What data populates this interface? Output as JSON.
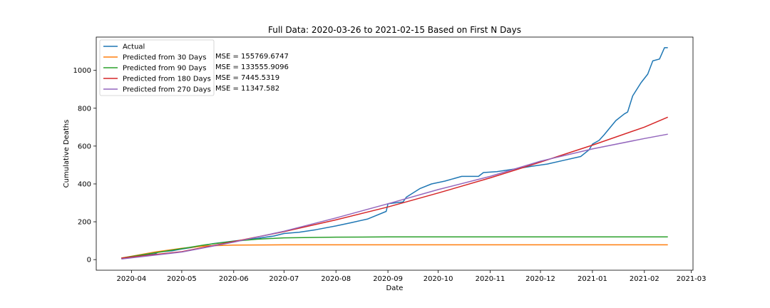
{
  "chart_data": {
    "type": "line",
    "title": "Full Data: 2020-03-26 to 2021-02-15 Based on First N Days",
    "xlabel": "Date",
    "ylabel": "Cumulative Deaths",
    "x_start": "2020-03-26",
    "x_end": "2021-02-15",
    "xlim": [
      "2020-03-11",
      "2021-03-02"
    ],
    "ylim": [
      -56,
      1176
    ],
    "x_ticks": [
      {
        "date": "2020-04-01",
        "label": "2020-04"
      },
      {
        "date": "2020-05-01",
        "label": "2020-05"
      },
      {
        "date": "2020-06-01",
        "label": "2020-06"
      },
      {
        "date": "2020-07-01",
        "label": "2020-07"
      },
      {
        "date": "2020-08-01",
        "label": "2020-08"
      },
      {
        "date": "2020-09-01",
        "label": "2020-09"
      },
      {
        "date": "2020-10-01",
        "label": "2020-10"
      },
      {
        "date": "2020-11-01",
        "label": "2020-11"
      },
      {
        "date": "2020-12-01",
        "label": "2020-12"
      },
      {
        "date": "2021-01-01",
        "label": "2021-01"
      },
      {
        "date": "2021-02-01",
        "label": "2021-02"
      },
      {
        "date": "2021-03-01",
        "label": "2021-03"
      }
    ],
    "y_ticks": [
      0,
      200,
      400,
      600,
      800,
      1000
    ],
    "grid": false,
    "legend_position": "top-left",
    "series": [
      {
        "name": "Actual",
        "color": "#1f77b4",
        "points": [
          [
            "2020-03-26",
            5
          ],
          [
            "2020-04-01",
            12
          ],
          [
            "2020-04-08",
            22
          ],
          [
            "2020-04-15",
            30
          ],
          [
            "2020-04-17",
            40
          ],
          [
            "2020-04-25",
            46
          ],
          [
            "2020-05-01",
            56
          ],
          [
            "2020-05-10",
            68
          ],
          [
            "2020-05-20",
            85
          ],
          [
            "2020-06-01",
            98
          ],
          [
            "2020-06-15",
            112
          ],
          [
            "2020-06-25",
            125
          ],
          [
            "2020-07-01",
            138
          ],
          [
            "2020-07-10",
            145
          ],
          [
            "2020-07-20",
            158
          ],
          [
            "2020-08-01",
            178
          ],
          [
            "2020-08-10",
            195
          ],
          [
            "2020-08-20",
            215
          ],
          [
            "2020-08-31",
            255
          ],
          [
            "2020-09-01",
            295
          ],
          [
            "2020-09-10",
            305
          ],
          [
            "2020-09-12",
            330
          ],
          [
            "2020-09-20",
            375
          ],
          [
            "2020-09-27",
            400
          ],
          [
            "2020-10-05",
            415
          ],
          [
            "2020-10-15",
            440
          ],
          [
            "2020-10-25",
            440
          ],
          [
            "2020-10-28",
            460
          ],
          [
            "2020-11-05",
            465
          ],
          [
            "2020-11-15",
            478
          ],
          [
            "2020-11-25",
            492
          ],
          [
            "2020-12-05",
            505
          ],
          [
            "2020-12-15",
            525
          ],
          [
            "2020-12-25",
            545
          ],
          [
            "2020-12-30",
            580
          ],
          [
            "2021-01-01",
            610
          ],
          [
            "2021-01-05",
            630
          ],
          [
            "2021-01-08",
            660
          ],
          [
            "2021-01-15",
            735
          ],
          [
            "2021-01-20",
            770
          ],
          [
            "2021-01-22",
            780
          ],
          [
            "2021-01-25",
            865
          ],
          [
            "2021-01-30",
            935
          ],
          [
            "2021-02-03",
            980
          ],
          [
            "2021-02-06",
            1050
          ],
          [
            "2021-02-10",
            1060
          ],
          [
            "2021-02-13",
            1120
          ],
          [
            "2021-02-15",
            1120
          ]
        ]
      },
      {
        "name": "Predicted from 30 Days",
        "color": "#ff7f0e",
        "mse": "MSE = 155769.6747",
        "points": [
          [
            "2020-03-26",
            8
          ],
          [
            "2020-04-15",
            40
          ],
          [
            "2020-05-01",
            60
          ],
          [
            "2020-05-15",
            72
          ],
          [
            "2020-06-01",
            77
          ],
          [
            "2020-07-01",
            78
          ],
          [
            "2021-02-15",
            78
          ]
        ]
      },
      {
        "name": "Predicted from 90 Days",
        "color": "#2ca02c",
        "mse": "MSE = 133555.9096",
        "points": [
          [
            "2020-03-26",
            8
          ],
          [
            "2020-04-15",
            36
          ],
          [
            "2020-05-01",
            58
          ],
          [
            "2020-05-15",
            78
          ],
          [
            "2020-06-01",
            97
          ],
          [
            "2020-06-15",
            108
          ],
          [
            "2020-07-01",
            115
          ],
          [
            "2020-08-01",
            119
          ],
          [
            "2020-09-01",
            120
          ],
          [
            "2021-02-15",
            120
          ]
        ]
      },
      {
        "name": "Predicted from 180 Days",
        "color": "#d62728",
        "mse": "MSE = 7445.5319",
        "points": [
          [
            "2020-03-26",
            8
          ],
          [
            "2020-05-01",
            42
          ],
          [
            "2020-06-01",
            95
          ],
          [
            "2020-07-01",
            148
          ],
          [
            "2020-08-01",
            210
          ],
          [
            "2020-09-01",
            278
          ],
          [
            "2020-10-01",
            352
          ],
          [
            "2020-11-01",
            432
          ],
          [
            "2020-12-01",
            515
          ],
          [
            "2021-01-01",
            605
          ],
          [
            "2021-02-01",
            700
          ],
          [
            "2021-02-15",
            753
          ]
        ]
      },
      {
        "name": "Predicted from 270 Days",
        "color": "#9467bd",
        "mse": "MSE = 11347.582",
        "points": [
          [
            "2020-03-26",
            3
          ],
          [
            "2020-05-01",
            40
          ],
          [
            "2020-06-01",
            92
          ],
          [
            "2020-07-01",
            150
          ],
          [
            "2020-08-01",
            220
          ],
          [
            "2020-09-01",
            295
          ],
          [
            "2020-10-01",
            370
          ],
          [
            "2020-11-01",
            440
          ],
          [
            "2020-12-01",
            520
          ],
          [
            "2021-01-01",
            585
          ],
          [
            "2021-02-01",
            640
          ],
          [
            "2021-02-15",
            663
          ]
        ]
      }
    ]
  }
}
